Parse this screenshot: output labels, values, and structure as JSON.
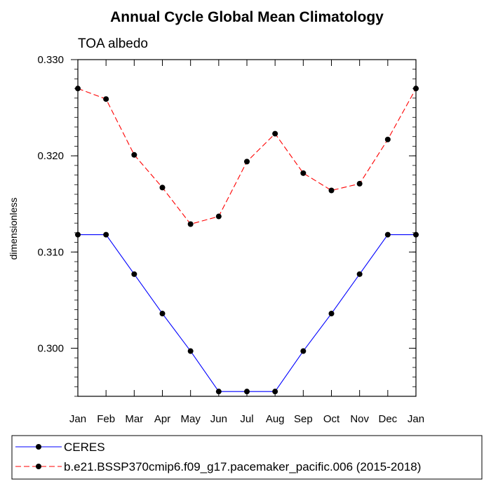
{
  "chart_data": {
    "type": "line",
    "title": "Annual Cycle Global Mean Climatology",
    "subtitle": "TOA albedo",
    "xlabel": "",
    "ylabel": "dimensionless",
    "categories": [
      "Jan",
      "Feb",
      "Mar",
      "Apr",
      "May",
      "Jun",
      "Jul",
      "Aug",
      "Sep",
      "Oct",
      "Nov",
      "Dec",
      "Jan"
    ],
    "ylim": [
      0.295,
      0.33
    ],
    "yticks": [
      "0.300",
      "0.310",
      "0.320",
      "0.330"
    ],
    "ytick_values": [
      0.3,
      0.31,
      0.32,
      0.33
    ],
    "y_minor_step": 0.001,
    "grid": false,
    "legend_position": "bottom",
    "series": [
      {
        "name": "CERES",
        "color": "#0000ff",
        "dash": false,
        "values": [
          0.3118,
          0.3118,
          0.3077,
          0.3036,
          0.2997,
          0.2955,
          0.2955,
          0.2955,
          0.2997,
          0.3036,
          0.3077,
          0.3118,
          0.3118
        ]
      },
      {
        "name": "b.e21.BSSP370cmip6.f09_g17.pacemaker_pacific.006 (2015-2018)",
        "color": "#ff0000",
        "dash": true,
        "values": [
          0.327,
          0.3259,
          0.3201,
          0.3167,
          0.3129,
          0.3137,
          0.3194,
          0.3223,
          0.3182,
          0.3164,
          0.3171,
          0.3217,
          0.327
        ]
      }
    ]
  }
}
